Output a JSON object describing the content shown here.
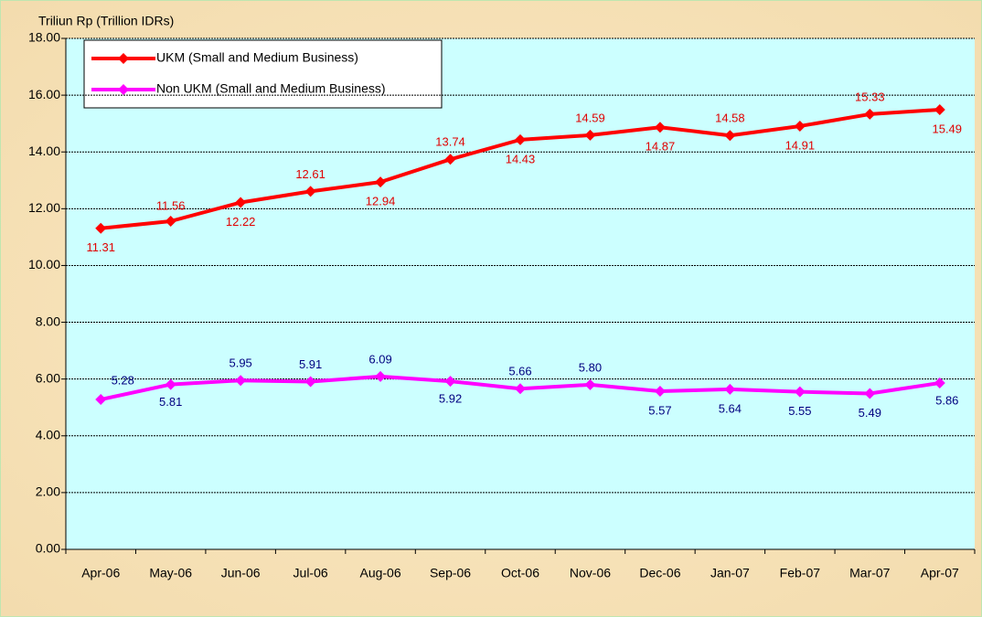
{
  "chart_data": {
    "type": "line",
    "y_label": "Triliun Rp (Trillion IDRs)",
    "categories": [
      "Apr-06",
      "May-06",
      "Jun-06",
      "Jul-06",
      "Aug-06",
      "Sep-06",
      "Oct-06",
      "Nov-06",
      "Dec-06",
      "Jan-07",
      "Feb-07",
      "Mar-07",
      "Apr-07"
    ],
    "series": [
      {
        "name": "UKM (Small and Medium Business)",
        "color": "#ff0000",
        "label_color": "#e00000",
        "values": [
          11.31,
          11.56,
          12.22,
          12.61,
          12.94,
          13.74,
          14.43,
          14.59,
          14.87,
          14.58,
          14.91,
          15.33,
          15.49
        ],
        "value_labels": [
          "11.31",
          "11.56",
          "12.22",
          "12.61",
          "12.94",
          "13.74",
          "14.43",
          "14.59",
          "14.87",
          "14.58",
          "14.91",
          "15.33",
          "15.49"
        ]
      },
      {
        "name": "Non UKM (Small and Medium Business)",
        "color": "#ff00ff",
        "label_color": "#000080",
        "values": [
          5.28,
          5.81,
          5.95,
          5.91,
          6.09,
          5.92,
          5.66,
          5.8,
          5.57,
          5.64,
          5.55,
          5.49,
          5.86
        ],
        "value_labels": [
          "5.28",
          "5.81",
          "5.95",
          "5.91",
          "6.09",
          "5.92",
          "5.66",
          "5.80",
          "5.57",
          "5.64",
          "5.55",
          "5.49",
          "5.86"
        ]
      }
    ],
    "ylim": [
      0,
      18
    ],
    "yticks": [
      {
        "value": 0,
        "label": "0.00"
      },
      {
        "value": 2,
        "label": "2.00"
      },
      {
        "value": 4,
        "label": "4.00"
      },
      {
        "value": 6,
        "label": "6.00"
      },
      {
        "value": 8,
        "label": "8.00"
      },
      {
        "value": 10,
        "label": "10.00"
      },
      {
        "value": 12,
        "label": "12.00"
      },
      {
        "value": 14,
        "label": "14.00"
      },
      {
        "value": 16,
        "label": "16.00"
      },
      {
        "value": 18,
        "label": "18.00"
      }
    ],
    "grid": true,
    "legend": "upper left"
  }
}
